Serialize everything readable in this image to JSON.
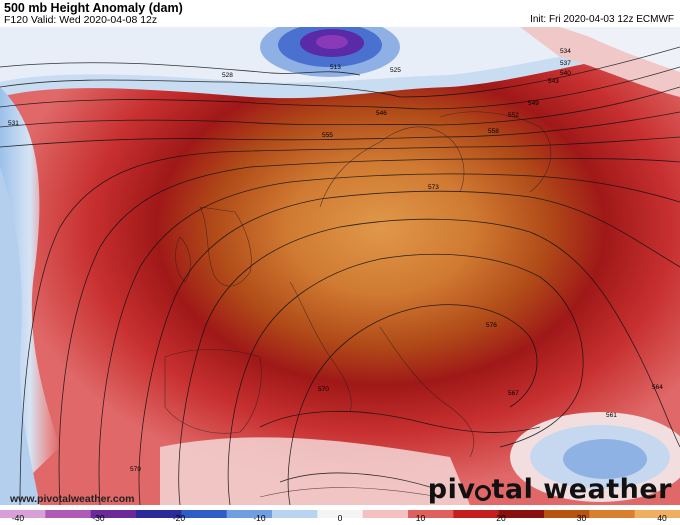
{
  "header": {
    "title": "500 mb Height Anomaly (dam)",
    "valid": "F120 Valid: Wed 2020-04-08 12z",
    "init": "Init: Fri 2020-04-03 12z ECMWF"
  },
  "footer": {
    "website": "www.pivotalweather.com",
    "brand_left": "piv",
    "brand_right": "tal weather"
  },
  "colorbar": {
    "ticks": [
      "-40",
      "-30",
      "-20",
      "-10",
      "0",
      "10",
      "20",
      "30",
      "40"
    ],
    "colors": [
      "#d8a0d8",
      "#b05ab8",
      "#6a2a9a",
      "#2a2a9a",
      "#2e5cc8",
      "#6f9fe0",
      "#b8d4f0",
      "#f4f4f4",
      "#f4c0c0",
      "#e06060",
      "#c41e1e",
      "#8a1010",
      "#b8520e",
      "#d8802e",
      "#eeb060"
    ]
  },
  "contours": [
    {
      "label": "513"
    },
    {
      "label": "525"
    },
    {
      "label": "528"
    },
    {
      "label": "531"
    },
    {
      "label": "534"
    },
    {
      "label": "537"
    },
    {
      "label": "540"
    },
    {
      "label": "543"
    },
    {
      "label": "546"
    },
    {
      "label": "549"
    },
    {
      "label": "552"
    },
    {
      "label": "555"
    },
    {
      "label": "558"
    },
    {
      "label": "561"
    },
    {
      "label": "564"
    },
    {
      "label": "567"
    },
    {
      "label": "570"
    },
    {
      "label": "573"
    },
    {
      "label": "576"
    },
    {
      "label": "579"
    }
  ]
}
